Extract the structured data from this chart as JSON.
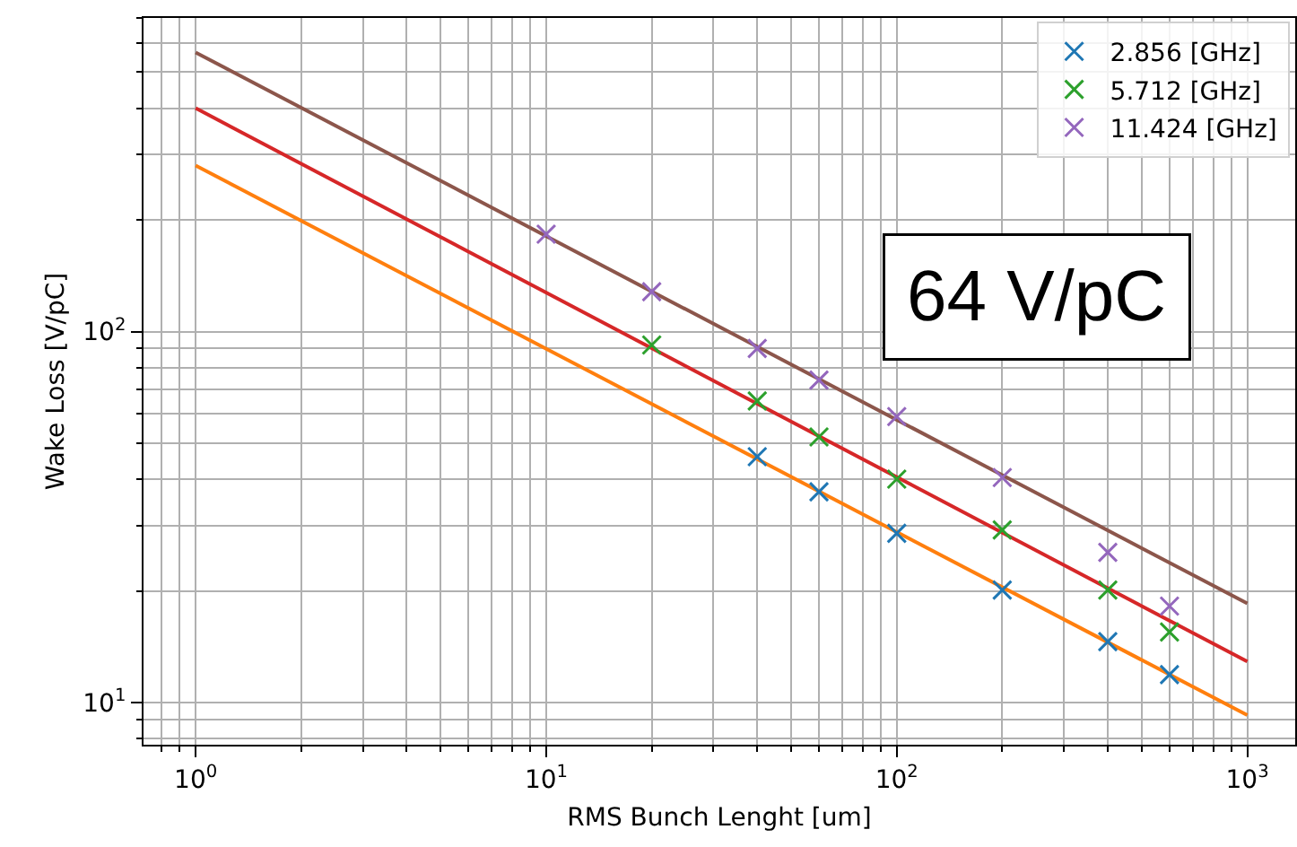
{
  "chart_data": {
    "type": "scatter",
    "xlabel": "RMS Bunch Lenght [um]",
    "ylabel": "Wake Loss [V/pC]",
    "log": "xy",
    "grid": true,
    "legend": "top right",
    "marker": "cross",
    "xlim": [
      0.71,
      1370
    ],
    "ylim": [
      7.7,
      700
    ],
    "xticks": [
      {
        "value": 1,
        "label": "10$^{0}$"
      },
      {
        "value": 10,
        "label": "10$^{1}$"
      },
      {
        "value": 100,
        "label": "10$^{2}$"
      },
      {
        "value": 1000,
        "label": "10$^{3}$"
      }
    ],
    "yticks": [
      {
        "value": 10,
        "label": "10$^{1}$"
      },
      {
        "value": 100,
        "label": "10$^{2}$"
      }
    ],
    "annotations": [
      "64 V/pC"
    ],
    "series": [
      {
        "type": "line",
        "marker": "none",
        "color": "#ff7f0e",
        "x": [
          1,
          1000
        ],
        "values": [
          280,
          9.25
        ]
      },
      {
        "type": "line",
        "marker": "none",
        "color": "#d62728",
        "x": [
          1,
          1000
        ],
        "values": [
          400,
          12.9
        ]
      },
      {
        "type": "line",
        "marker": "none",
        "color": "#8c564b",
        "x": [
          1,
          1000
        ],
        "values": [
          565,
          18.5
        ]
      },
      {
        "name": "2.856 [GHz]",
        "color": "#1f77b4",
        "x": [
          40,
          60,
          100,
          200,
          400,
          600
        ],
        "values": [
          46,
          37,
          28.6,
          20.1,
          14.6,
          11.9
        ]
      },
      {
        "name": "5.712 [GHz]",
        "color": "#2ca02c",
        "x": [
          20,
          40,
          60,
          100,
          200,
          400,
          600
        ],
        "values": [
          92,
          65,
          52,
          40,
          29.2,
          20.1,
          15.5
        ]
      },
      {
        "name": "11.424 [GHz]",
        "color": "#9467bd",
        "x": [
          10,
          20,
          40,
          60,
          100,
          200,
          400,
          600
        ],
        "values": [
          183,
          128,
          90,
          74,
          59,
          40.4,
          25.4,
          18.2
        ]
      }
    ]
  }
}
